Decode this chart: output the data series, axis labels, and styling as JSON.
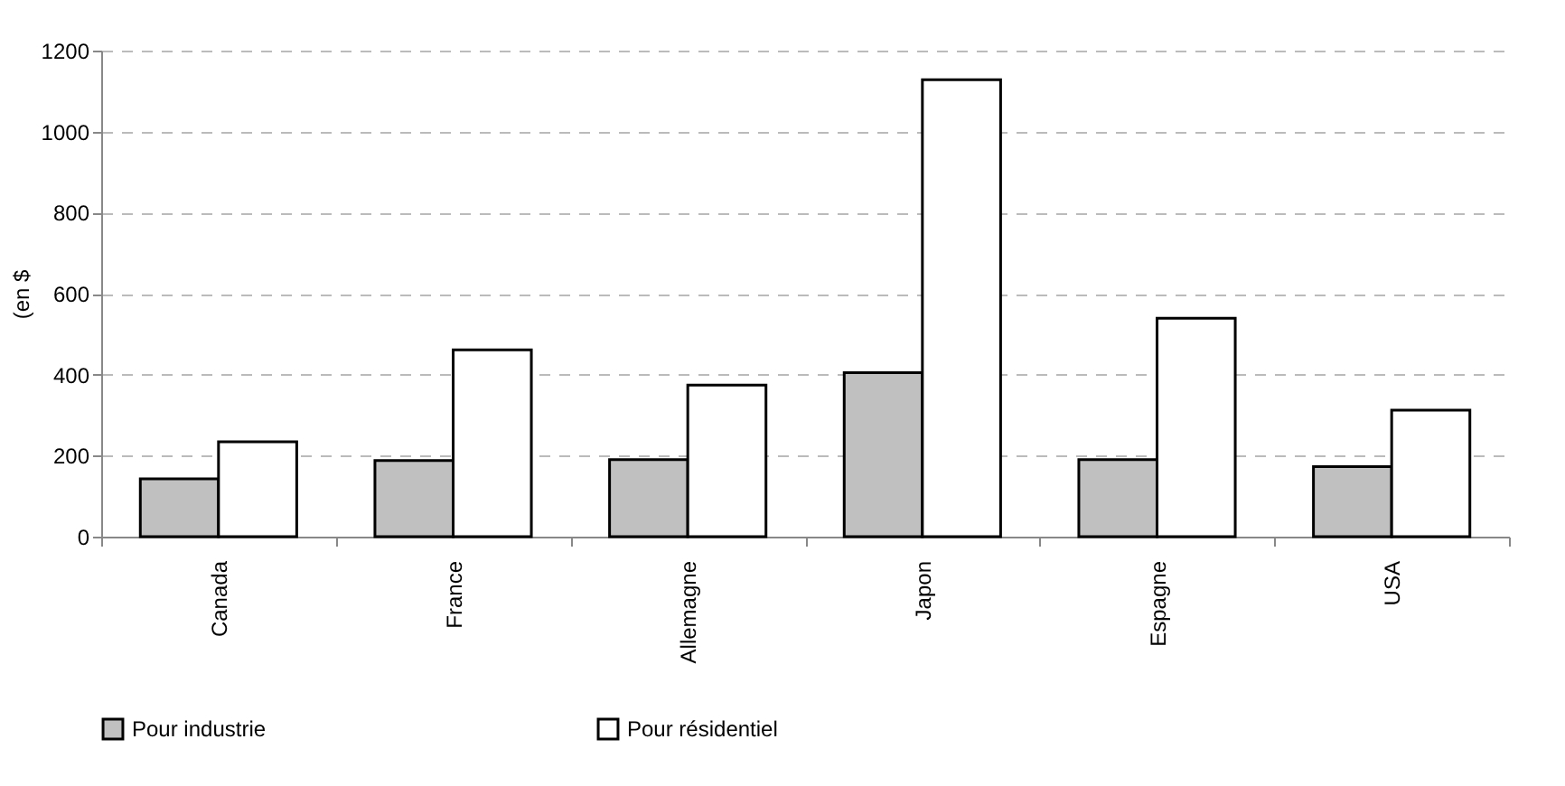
{
  "chart_data": {
    "type": "bar",
    "ylabel": "(en $",
    "categories": [
      "Canada",
      "France",
      "Allemagne",
      "Japon",
      "Espagne",
      "USA"
    ],
    "series": [
      {
        "name": "Pour industrie",
        "color": "#c0c0c0",
        "values": [
          143,
          188,
          190,
          405,
          190,
          173
        ]
      },
      {
        "name": "Pour résidentiel",
        "color": "#ffffff",
        "values": [
          234,
          461,
          374,
          1128,
          539,
          312
        ]
      }
    ],
    "ylim": [
      0,
      1200
    ],
    "yticks": [
      0,
      200,
      400,
      600,
      800,
      1000,
      1200
    ],
    "grid": "y",
    "legend": "bottom"
  }
}
